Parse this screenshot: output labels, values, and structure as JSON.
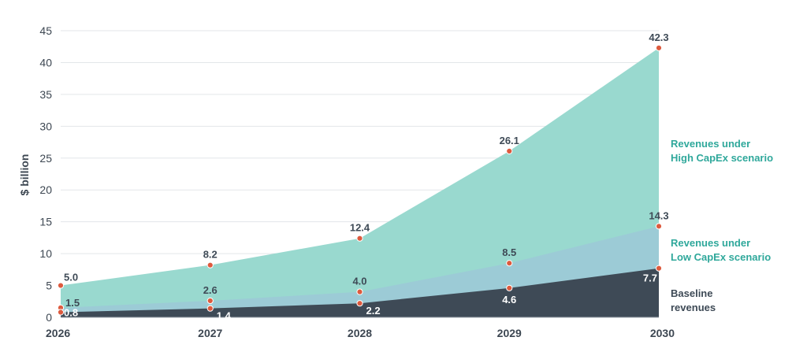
{
  "chart_data": {
    "type": "area",
    "title": "",
    "xlabel": "",
    "ylabel": "$ billion",
    "x": [
      "2026",
      "2027",
      "2028",
      "2029",
      "2030"
    ],
    "ylim": [
      0,
      45
    ],
    "yticks": [
      "0",
      "5",
      "10",
      "15",
      "20",
      "25",
      "30",
      "35",
      "40",
      "45"
    ],
    "grid": true,
    "stacked": false,
    "series": [
      {
        "name": "Revenues under High CapEx scenario",
        "label_lines": [
          "Revenues under",
          "High CapEx scenario"
        ],
        "values": [
          5.0,
          8.2,
          12.4,
          26.1,
          42.3
        ],
        "labels": [
          "5.0",
          "8.2",
          "12.4",
          "26.1",
          "42.3"
        ],
        "color": "#99d9cf",
        "label_color": "#2fa89b"
      },
      {
        "name": "Revenues under Low CapEx scenario",
        "label_lines": [
          "Revenues under",
          "Low CapEx scenario"
        ],
        "values": [
          1.5,
          2.6,
          4.0,
          8.5,
          14.3
        ],
        "labels": [
          "1.5",
          "2.6",
          "4.0",
          "8.5",
          "14.3"
        ],
        "color": "#9ccbd6",
        "label_color": "#2fa89b"
      },
      {
        "name": "Baseline revenues",
        "label_lines": [
          "Baseline",
          "revenues"
        ],
        "values": [
          0.8,
          1.4,
          2.2,
          4.6,
          7.7
        ],
        "labels": [
          "0.8",
          "1.4",
          "2.2",
          "4.6",
          "7.7"
        ],
        "color": "#3e4a56",
        "label_color": "#3e4a56"
      }
    ],
    "marker_color": "#dd5a3e",
    "legend": "right, inline series labels"
  }
}
